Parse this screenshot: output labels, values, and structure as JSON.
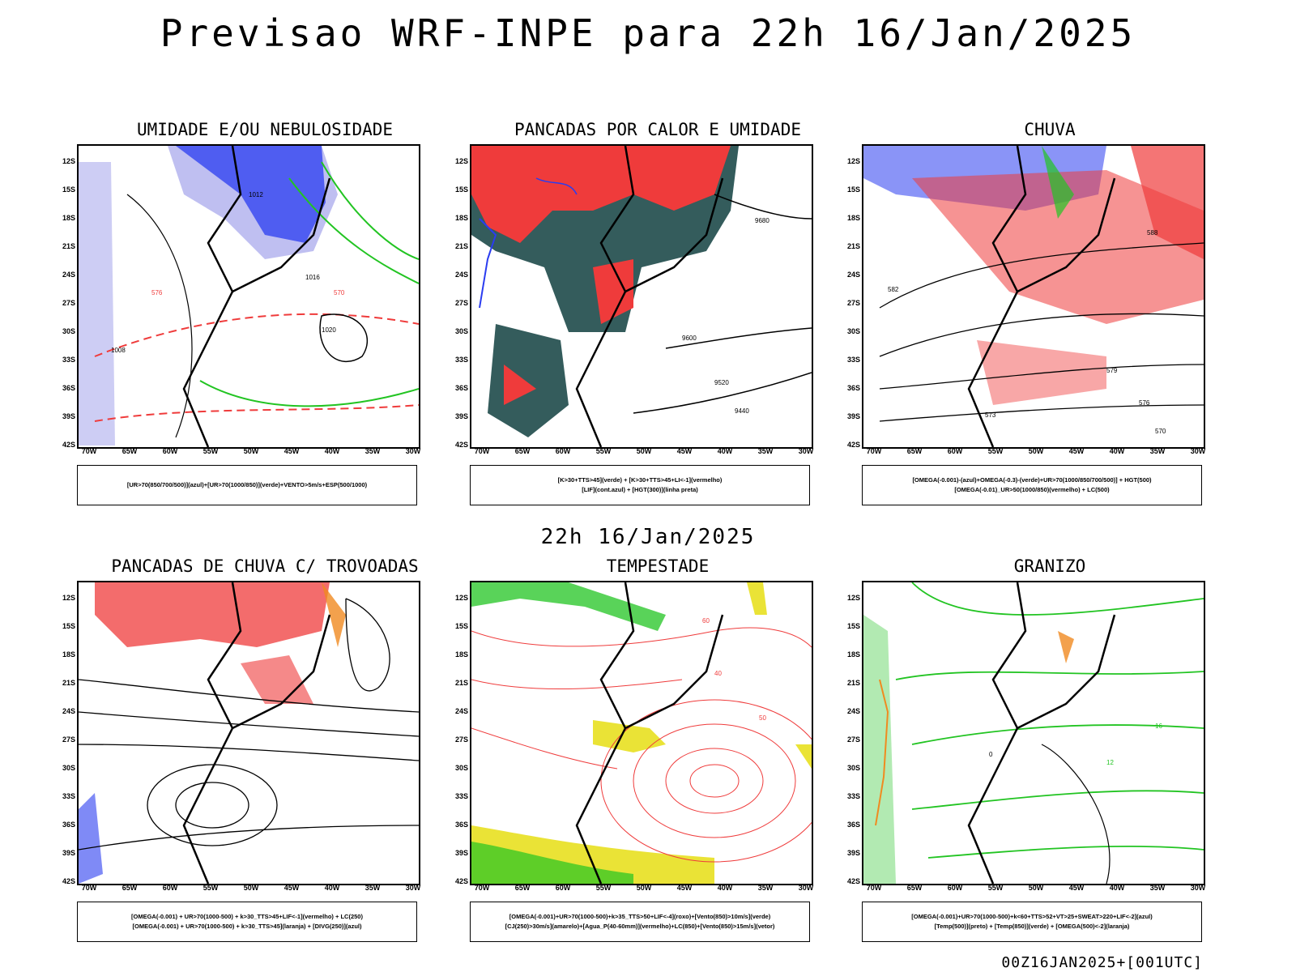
{
  "title": "Previsao WRF-INPE  para 22h 16/Jan/2025",
  "subtitle": "22h 16/Jan/2025",
  "footer": "00Z16JAN2025+[001UTC]",
  "axes": {
    "lat_labels": [
      "12S",
      "15S",
      "18S",
      "21S",
      "24S",
      "27S",
      "30S",
      "33S",
      "36S",
      "39S",
      "42S"
    ],
    "lon_labels": [
      "70W",
      "65W",
      "60W",
      "55W",
      "50W",
      "45W",
      "40W",
      "35W",
      "30W"
    ]
  },
  "colors": {
    "red": "#ef3b3b",
    "blue": "#2a3cf0",
    "lavender": "#b8b8f0",
    "green": "#22c422",
    "darkteal": "#1e4a4a",
    "yellow": "#e8e020",
    "orange": "#f08a20"
  },
  "panels": [
    {
      "title": "UMIDADE E/OU NEBULOSIDADE",
      "legend": [
        "[UR>70(850/700/500)](azul)+[UR>70(1000/850)](verde)+VENTO>5m/s+ESP(500/1000)"
      ],
      "contour_labels": [
        "1008",
        "1012",
        "1016",
        "1020",
        "576",
        "570"
      ]
    },
    {
      "title": "PANCADAS POR CALOR E UMIDADE",
      "legend": [
        "[K>30+TTS>45](verde)  +  [K>30+TTS>45+LI<-1](vermelho)",
        "[LIF](cont.azul)  +  [HGT(300)](linha preta)"
      ],
      "contour_labels": [
        "9680",
        "9600",
        "9520",
        "9440"
      ]
    },
    {
      "title": "CHUVA",
      "legend": [
        "[OMEGA(-0.001)-(azul)+OMEGA(-0.3)-(verde)+UR>70(1000/850/700/500)]  +  HGT(500)",
        "[OMEGA(-0.01)_UR>50(1000/850)(vermelho)  +  LC(500)"
      ],
      "contour_labels": [
        "588",
        "582",
        "579",
        "576",
        "573",
        "570"
      ]
    },
    {
      "title": "PANCADAS DE CHUVA C/ TROVOADAS",
      "legend": [
        "[OMEGA(-0.001)  +  UR>70(1000-500)  +  k>30_TTS>45+LIF<-1](vermelho)  +  LC(250)",
        "[OMEGA(-0.001)  +  UR>70(1000-500)  +  k>30_TTS>45](laranja)  +  [DIVG(250)](azul)"
      ],
      "contour_labels": []
    },
    {
      "title": "TEMPESTADE",
      "legend": [
        "[OMEGA(-0.001)+UR>70(1000-500)+k>35_TTS>50+LIF<-4](roxo)+[Vento(850)>10m/s](verde)",
        "[CJ(250)>30m/s](amarelo)+[Agua_P(40-60mm)](vermelho)+LC(850)+[Vento(850)>15m/s](vetor)"
      ],
      "contour_labels": [
        "40",
        "50",
        "60"
      ]
    },
    {
      "title": "GRANIZO",
      "legend": [
        "[OMEGA(-0.001)+UR>70(1000-500)+k<60+TTS>52+VT>25+SWEAT>220+LIF<-2](azul)",
        "[Temp(500)](preto)  +  [Temp(850)](verde)  +  [OMEGA(500)<-2](laranja)"
      ],
      "contour_labels": [
        "12",
        "16",
        "0"
      ]
    }
  ]
}
